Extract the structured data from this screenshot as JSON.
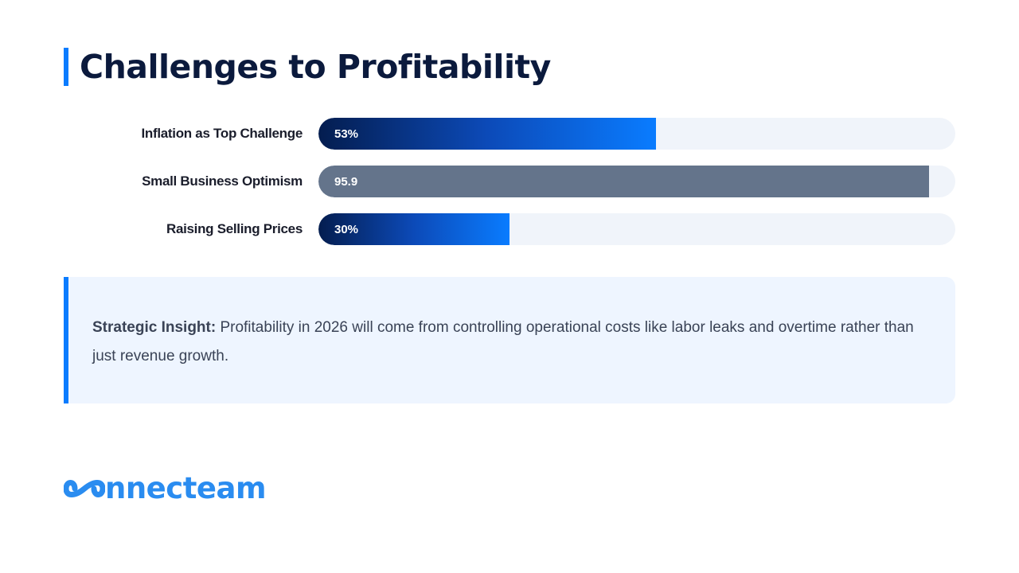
{
  "title": "Challenges to Profitability",
  "chart_data": {
    "type": "bar",
    "orientation": "horizontal",
    "categories": [
      "Inflation as Top Challenge",
      "Small Business Optimism",
      "Raising Selling Prices"
    ],
    "values": [
      53,
      95.9,
      30
    ],
    "value_labels": [
      "53%",
      "95.9",
      "30%"
    ],
    "xlim": [
      0,
      100
    ],
    "bar_colors": [
      "#0a7cff",
      "#64748b",
      "#0a7cff"
    ],
    "grid": false,
    "legend": "none"
  },
  "insight": {
    "label": "Strategic Insight:",
    "text": " Profitability in 2026 will come from controlling operational costs like labor leaks and overtime rather than just revenue growth."
  },
  "logo": {
    "text": "nnecteam",
    "color": "#2a8cf0"
  },
  "colors": {
    "accent": "#0a7cff",
    "title": "#0b1a3d",
    "track": "#f0f4fa",
    "insight_bg": "#eef5ff"
  }
}
